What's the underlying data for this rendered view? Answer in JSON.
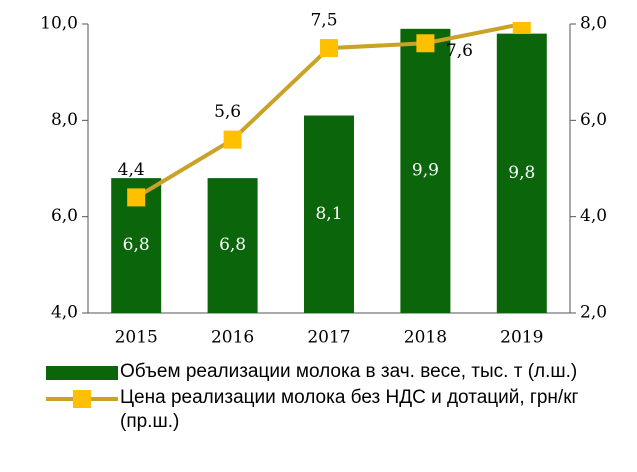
{
  "chart_data": {
    "type": "bar+line",
    "categories": [
      "2015",
      "2016",
      "2017",
      "2018",
      "2019"
    ],
    "series": [
      {
        "name": "Объем реализации молока в зач. весе, тыс. т (л.ш.)",
        "type": "bar",
        "color": "#0b650b",
        "values": [
          6.8,
          6.8,
          8.1,
          9.9,
          9.8
        ],
        "value_labels": [
          "6,8",
          "6,8",
          "8,1",
          "9,9",
          "9,8"
        ]
      },
      {
        "name": "Цена реализации молока без НДС и дотаций, грн/кг (пр.ш.)",
        "type": "line",
        "axis": "y2",
        "color": "#c9a227",
        "marker_color": "#ffc000",
        "values": [
          4.4,
          5.6,
          7.5,
          7.6,
          8.0
        ],
        "value_labels": [
          "4,4",
          "5,6",
          "7,5",
          "7,6",
          null
        ]
      }
    ],
    "ylim": [
      4,
      10
    ],
    "yticks": [
      {
        "value": 4,
        "label": "4,0"
      },
      {
        "value": 6,
        "label": "6,0"
      },
      {
        "value": 8,
        "label": "8,0"
      },
      {
        "value": 10,
        "label": "10,0"
      }
    ],
    "y2lim": [
      2,
      8
    ],
    "y2ticks": [
      {
        "value": 2,
        "label": "2,0"
      },
      {
        "value": 4,
        "label": "4,0"
      },
      {
        "value": 6,
        "label": "6,0"
      },
      {
        "value": 8,
        "label": "8,0"
      }
    ]
  }
}
